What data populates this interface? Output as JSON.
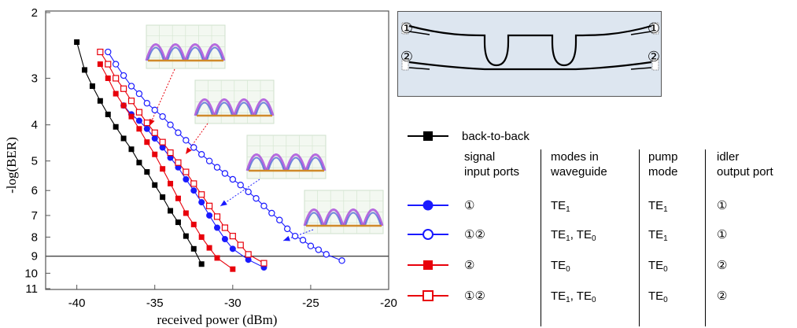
{
  "chart_data": {
    "type": "scatter",
    "xlabel": "received power (dBm)",
    "ylabel": "-log(BER)",
    "xlim": [
      -42,
      -20
    ],
    "x_ticks": [
      "-40",
      "-35",
      "-30",
      "-25",
      "-20"
    ],
    "y_ticks": [
      "2",
      "3",
      "4",
      "5",
      "6",
      "7",
      "8",
      "9",
      "10",
      "11"
    ],
    "y_scale": "log-log BER (inverted)",
    "threshold_line_y": 9,
    "series": [
      {
        "name": "back-to-back",
        "color": "#000000",
        "marker": "filled-square",
        "x": [
          -40,
          -39.5,
          -39,
          -38.5,
          -38,
          -37.5,
          -37,
          -36.5,
          -36,
          -35.5,
          -35,
          -34.5,
          -34,
          -33.5,
          -33,
          -32.5,
          -32
        ],
        "y": [
          2.4,
          2.85,
          3.15,
          3.45,
          3.75,
          4.05,
          4.35,
          4.65,
          5.05,
          5.35,
          5.8,
          6.25,
          6.8,
          7.3,
          7.95,
          8.6,
          9.45
        ]
      },
      {
        "name": "signal ① / TE1 / TE1 / ①",
        "color": "#1a1aff",
        "marker": "filled-circle",
        "x": [
          -37,
          -36.5,
          -36,
          -35.5,
          -35,
          -34.5,
          -34,
          -33.5,
          -33,
          -32.5,
          -32,
          -31.5,
          -31,
          -30.5,
          -30,
          -29,
          -28
        ],
        "y": [
          3.55,
          3.75,
          3.9,
          4.1,
          4.35,
          4.6,
          4.9,
          5.2,
          5.6,
          6.0,
          6.45,
          7.0,
          7.55,
          8.1,
          8.6,
          9.2,
          9.65
        ]
      },
      {
        "name": "signal ①② / TE1, TE0 / TE1 / ①",
        "color": "#1a1aff",
        "marker": "open-circle",
        "x": [
          -38,
          -37.5,
          -37,
          -36.5,
          -36,
          -35.5,
          -35,
          -34.5,
          -34,
          -33.5,
          -33,
          -32.5,
          -32,
          -31.5,
          -31,
          -30.5,
          -30,
          -29.5,
          -29,
          -28.5,
          -28,
          -27.5,
          -27,
          -26.5,
          -26,
          -25.5,
          -25,
          -24.5,
          -24,
          -23
        ],
        "y": [
          2.55,
          2.75,
          2.95,
          3.15,
          3.3,
          3.5,
          3.65,
          3.8,
          4.0,
          4.2,
          4.4,
          4.6,
          4.8,
          5.0,
          5.2,
          5.4,
          5.6,
          5.8,
          6.05,
          6.3,
          6.6,
          6.9,
          7.2,
          7.6,
          7.95,
          8.15,
          8.45,
          8.65,
          8.9,
          9.25
        ]
      },
      {
        "name": "signal ② / TE0 / TE0 / ②",
        "color": "#e8000b",
        "marker": "filled-square",
        "x": [
          -38.5,
          -38,
          -37.5,
          -37,
          -36.5,
          -36,
          -35.5,
          -35,
          -34.5,
          -34,
          -33.5,
          -33,
          -32.5,
          -32,
          -31.5,
          -31,
          -30
        ],
        "y": [
          2.75,
          3.0,
          3.3,
          3.55,
          3.8,
          4.1,
          4.45,
          4.8,
          5.25,
          5.75,
          6.3,
          6.9,
          7.4,
          8.0,
          8.55,
          9.1,
          9.75
        ]
      },
      {
        "name": "signal ①② / TE1, TE0 / TE0 / ②",
        "color": "#e8000b",
        "marker": "open-square",
        "x": [
          -38.5,
          -38,
          -37.5,
          -37,
          -36.5,
          -36,
          -35.5,
          -35,
          -34.5,
          -34,
          -33.5,
          -33,
          -32.5,
          -32,
          -31.5,
          -31,
          -30.5,
          -30,
          -29.5,
          -29,
          -28
        ],
        "y": [
          2.55,
          2.75,
          3.0,
          3.2,
          3.45,
          3.7,
          3.95,
          4.2,
          4.45,
          4.75,
          5.05,
          5.35,
          5.75,
          6.15,
          6.6,
          7.05,
          7.55,
          7.95,
          8.4,
          8.9,
          9.4
        ]
      }
    ],
    "eye_diagram_insets": 4
  },
  "diagram": {
    "port_1_left": "①",
    "port_2_left": "②",
    "port_1_right": "①",
    "port_2_right": "②"
  },
  "legend": {
    "back_to_back": "back-to-back",
    "headers": {
      "signal": [
        "signal",
        "input ports"
      ],
      "modes": [
        "modes in",
        "waveguide"
      ],
      "pump": [
        "pump",
        "mode"
      ],
      "idler": [
        "idler",
        "output port"
      ]
    },
    "rows": [
      {
        "signal": "①",
        "modes": [
          "TE",
          "1",
          ""
        ],
        "modes2": null,
        "pump": [
          "TE",
          "1"
        ],
        "idler": "①"
      },
      {
        "signal": "①②",
        "modes": [
          "TE",
          "1",
          ", TE"
        ],
        "modes2": "0",
        "pump": [
          "TE",
          "1"
        ],
        "idler": "①"
      },
      {
        "signal": "②",
        "modes": [
          "TE",
          "0",
          ""
        ],
        "modes2": null,
        "pump": [
          "TE",
          "0"
        ],
        "idler": "②"
      },
      {
        "signal": "①②",
        "modes": [
          "TE",
          "1",
          ", TE"
        ],
        "modes2": "0",
        "pump": [
          "TE",
          "0"
        ],
        "idler": "②"
      }
    ]
  }
}
